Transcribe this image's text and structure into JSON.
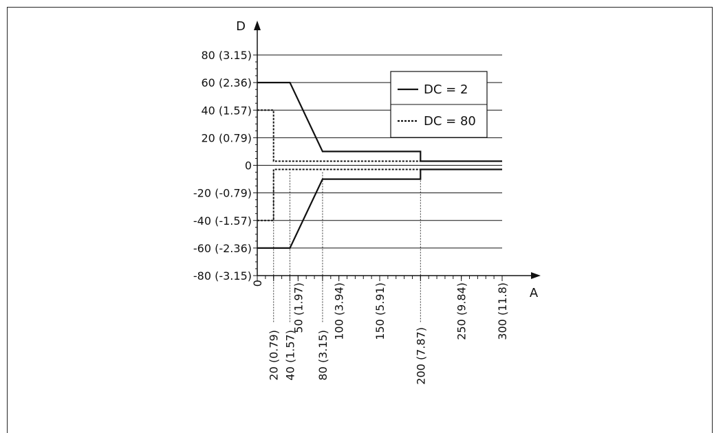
{
  "chart_data": {
    "type": "line",
    "xlabel": "A",
    "ylabel": "D",
    "xlim": [
      0,
      300
    ],
    "ylim": [
      -80,
      80
    ],
    "grid": true,
    "legend_position": "top-right",
    "y_ticks": [
      {
        "value": 80,
        "label": "80 (3.15)"
      },
      {
        "value": 60,
        "label": "60 (2.36)"
      },
      {
        "value": 40,
        "label": "40 (1.57)"
      },
      {
        "value": 20,
        "label": "20 (0.79)"
      },
      {
        "value": 0,
        "label": "0"
      },
      {
        "value": -20,
        "label": "-20 (-0.79)"
      },
      {
        "value": -40,
        "label": "-40 (-1.57)"
      },
      {
        "value": -60,
        "label": "-60 (-2.36)"
      },
      {
        "value": -80,
        "label": "-80 (-3.15)"
      }
    ],
    "x_ticks": [
      {
        "value": 0,
        "label": "0"
      },
      {
        "value": 20,
        "label": "20 (0.79)"
      },
      {
        "value": 40,
        "label": "40 (1.57)"
      },
      {
        "value": 50,
        "label": "50 (1.97)"
      },
      {
        "value": 80,
        "label": "80 (3.15)"
      },
      {
        "value": 100,
        "label": "100 (3.94)"
      },
      {
        "value": 150,
        "label": "150 (5.91)"
      },
      {
        "value": 200,
        "label": "200 (7.87)"
      },
      {
        "value": 250,
        "label": "250 (9.84)"
      },
      {
        "value": 300,
        "label": "300 (11.8)"
      }
    ],
    "series": [
      {
        "name": "DC = 2",
        "style": "solid",
        "upper": {
          "x": [
            0,
            40,
            80,
            200,
            200,
            300
          ],
          "y": [
            60,
            60,
            10,
            10,
            3,
            3
          ]
        },
        "lower": {
          "x": [
            0,
            40,
            80,
            200,
            200,
            300
          ],
          "y": [
            -60,
            -60,
            -10,
            -10,
            -3,
            -3
          ]
        }
      },
      {
        "name": "DC = 80",
        "style": "dotted",
        "upper": {
          "x": [
            0,
            20,
            20,
            300
          ],
          "y": [
            40,
            40,
            3,
            3
          ]
        },
        "lower": {
          "x": [
            0,
            20,
            20,
            300
          ],
          "y": [
            -40,
            -40,
            -3,
            -3
          ]
        }
      }
    ],
    "guide_lines_x": [
      20,
      40,
      80,
      200
    ]
  }
}
